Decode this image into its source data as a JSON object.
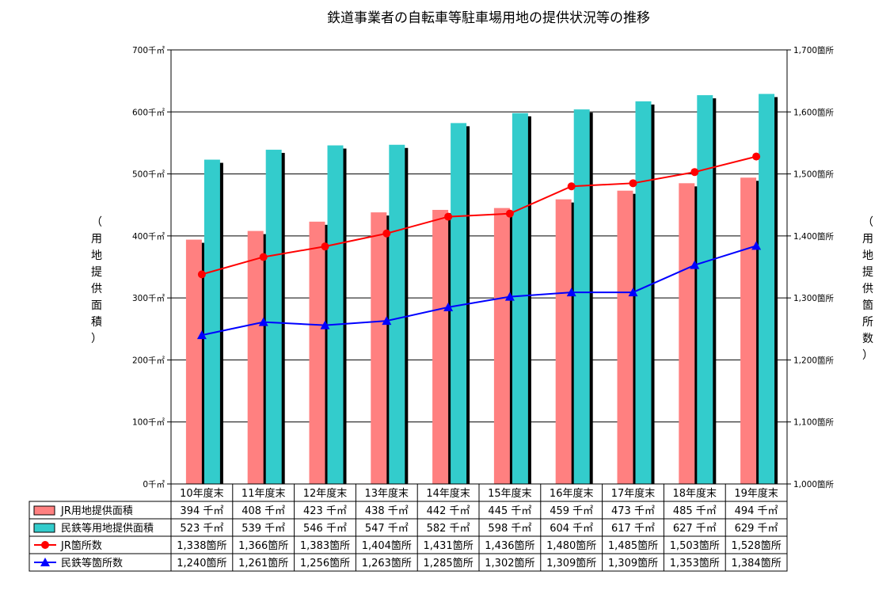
{
  "colors": {
    "jr_area": "#FF8080",
    "private_area": "#33CCCC",
    "jr_count": "#FF0000",
    "private_count": "#0000FF",
    "bar_shadow": "#000000",
    "grid": "#000000"
  },
  "chart_data": {
    "type": "bar",
    "title": "鉄道事業者の自転車等駐車場用地の提供状況等の推移",
    "ylabel_left": "（用地提供面積）",
    "ylabel_right": "（用地提供箇所数）",
    "categories": [
      "10年度末",
      "11年度末",
      "12年度末",
      "13年度末",
      "14年度末",
      "15年度末",
      "16年度末",
      "17年度末",
      "18年度末",
      "19年度末"
    ],
    "ylim_left": [
      0,
      700
    ],
    "ylim_right": [
      1000,
      1700
    ],
    "left_ticks": [
      "0千㎡",
      "100千㎡",
      "200千㎡",
      "300千㎡",
      "400千㎡",
      "500千㎡",
      "600千㎡",
      "700千㎡"
    ],
    "right_ticks": [
      "1,000箇所",
      "1,100箇所",
      "1,200箇所",
      "1,300箇所",
      "1,400箇所",
      "1,500箇所",
      "1,600箇所",
      "1,700箇所"
    ],
    "grid": true,
    "series": [
      {
        "name": "JR用地提供面積",
        "type": "bar",
        "axis": "left",
        "values": [
          394,
          408,
          423,
          438,
          442,
          445,
          459,
          473,
          485,
          494
        ],
        "labels": [
          "394 千㎡",
          "408 千㎡",
          "423 千㎡",
          "438 千㎡",
          "442 千㎡",
          "445 千㎡",
          "459 千㎡",
          "473 千㎡",
          "485 千㎡",
          "494 千㎡"
        ]
      },
      {
        "name": "民鉄等用地提供面積",
        "type": "bar",
        "axis": "left",
        "values": [
          523,
          539,
          546,
          547,
          582,
          598,
          604,
          617,
          627,
          629
        ],
        "labels": [
          "523 千㎡",
          "539 千㎡",
          "546 千㎡",
          "547 千㎡",
          "582 千㎡",
          "598 千㎡",
          "604 千㎡",
          "617 千㎡",
          "627 千㎡",
          "629 千㎡"
        ]
      },
      {
        "name": "JR箇所数",
        "type": "line",
        "axis": "right",
        "marker": "circle",
        "values": [
          1338,
          1366,
          1383,
          1404,
          1431,
          1436,
          1480,
          1485,
          1503,
          1528
        ],
        "labels": [
          "1,338箇所",
          "1,366箇所",
          "1,383箇所",
          "1,404箇所",
          "1,431箇所",
          "1,436箇所",
          "1,480箇所",
          "1,485箇所",
          "1,503箇所",
          "1,528箇所"
        ]
      },
      {
        "name": "民鉄等箇所数",
        "type": "line",
        "axis": "right",
        "marker": "triangle",
        "values": [
          1240,
          1261,
          1256,
          1263,
          1285,
          1302,
          1309,
          1309,
          1353,
          1384
        ],
        "labels": [
          "1,240箇所",
          "1,261箇所",
          "1,256箇所",
          "1,263箇所",
          "1,285箇所",
          "1,302箇所",
          "1,309箇所",
          "1,309箇所",
          "1,353箇所",
          "1,384箇所"
        ]
      }
    ]
  }
}
